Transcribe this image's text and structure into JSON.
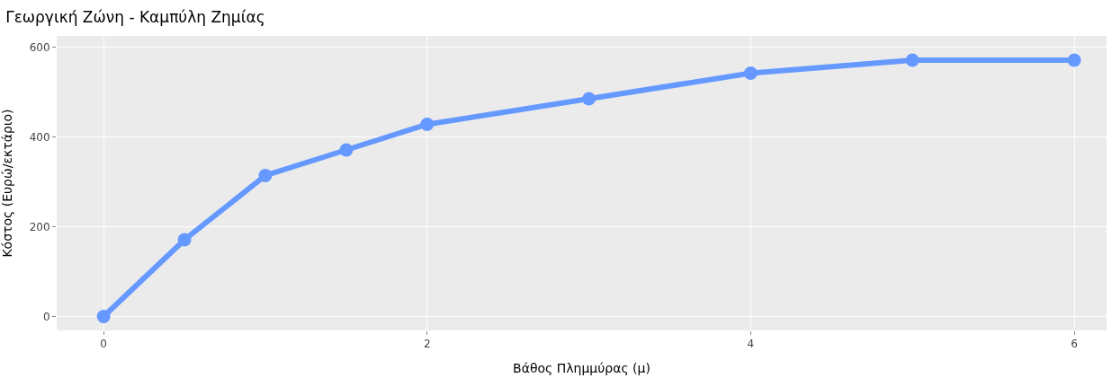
{
  "chart_data": {
    "type": "line",
    "title": "Γεωργική Ζώνη - Καμπύλη Ζημίας",
    "xlabel": "Βάθος Πλημμύρας (μ)",
    "ylabel": "Κόστος (Ευρώ/εκτάριο)",
    "x": [
      0,
      0.5,
      1,
      1.5,
      2,
      3,
      4,
      5,
      6
    ],
    "series": [
      {
        "color": "#6699ff",
        "values": [
          0,
          171,
          314,
          371,
          428,
          485,
          542,
          571,
          571
        ]
      }
    ],
    "xlim": [
      -0.29,
      6.2
    ],
    "ylim": [
      -31,
      625
    ],
    "xticks": [
      0,
      2,
      4,
      6
    ],
    "yticks": [
      0,
      200,
      400,
      600
    ],
    "grid": true,
    "marker": "circle",
    "line_style": "solid"
  }
}
